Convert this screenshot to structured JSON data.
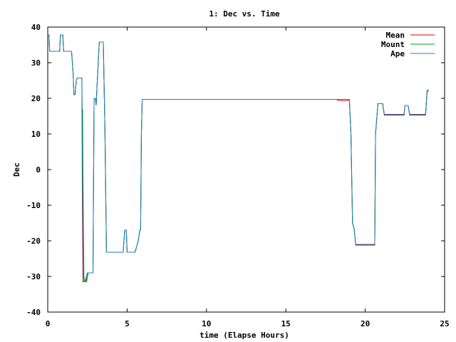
{
  "chart_data": {
    "type": "line",
    "title": "1: Dec vs. Time",
    "xlabel": "time (Elapse Hours)",
    "ylabel": "Dec",
    "xlim": [
      0,
      25
    ],
    "ylim": [
      -40,
      40
    ],
    "xticks": [
      0,
      5,
      10,
      15,
      20,
      25
    ],
    "yticks": [
      -40,
      -30,
      -20,
      -10,
      0,
      10,
      20,
      30,
      40
    ],
    "grid": false,
    "legend_position": "top-right",
    "series": [
      {
        "name": "Mean",
        "color": "#d40000",
        "points": [
          [
            0,
            37.8
          ],
          [
            0.08,
            37.8
          ],
          [
            0.12,
            33.2
          ],
          [
            0.75,
            33.2
          ],
          [
            0.8,
            37.8
          ],
          [
            0.95,
            37.8
          ],
          [
            1.0,
            33.2
          ],
          [
            1.5,
            33.2
          ],
          [
            1.6,
            27.0
          ],
          [
            1.65,
            21.0
          ],
          [
            1.72,
            21.0
          ],
          [
            1.8,
            25.0
          ],
          [
            1.85,
            25.7
          ],
          [
            2.15,
            25.7
          ],
          [
            2.18,
            -10.0
          ],
          [
            2.22,
            -31.5
          ],
          [
            2.35,
            -31.5
          ],
          [
            2.5,
            -29.0
          ],
          [
            2.85,
            -29.0
          ],
          [
            2.92,
            20.0
          ],
          [
            3.0,
            20.0
          ],
          [
            3.05,
            18.0
          ],
          [
            3.1,
            23.0
          ],
          [
            3.25,
            35.8
          ],
          [
            3.5,
            35.8
          ],
          [
            3.6,
            12.0
          ],
          [
            3.7,
            -23.2
          ],
          [
            4.75,
            -23.2
          ],
          [
            4.85,
            -17.0
          ],
          [
            4.95,
            -17.0
          ],
          [
            5.0,
            -23.2
          ],
          [
            5.5,
            -23.2
          ],
          [
            5.7,
            -20.0
          ],
          [
            5.8,
            -17.0
          ],
          [
            5.85,
            -17.0
          ],
          [
            5.9,
            10.0
          ],
          [
            5.95,
            19.7
          ],
          [
            18.2,
            19.7
          ],
          [
            18.3,
            19.4
          ],
          [
            19.0,
            19.4
          ],
          [
            19.1,
            10.0
          ],
          [
            19.2,
            -15.0
          ],
          [
            19.3,
            -16.5
          ],
          [
            19.4,
            -21.2
          ],
          [
            20.6,
            -21.2
          ],
          [
            20.65,
            10.0
          ],
          [
            20.8,
            18.5
          ],
          [
            21.1,
            18.5
          ],
          [
            21.2,
            15.3
          ],
          [
            22.45,
            15.3
          ],
          [
            22.5,
            18.0
          ],
          [
            22.7,
            18.0
          ],
          [
            22.8,
            15.3
          ],
          [
            23.8,
            15.3
          ],
          [
            23.9,
            22.0
          ],
          [
            24.0,
            22.0
          ]
        ]
      },
      {
        "name": "Mount",
        "color": "#00a000",
        "points": [
          [
            0,
            37.8
          ],
          [
            0.08,
            37.8
          ],
          [
            0.12,
            33.2
          ],
          [
            0.75,
            33.2
          ],
          [
            0.8,
            37.8
          ],
          [
            0.95,
            37.8
          ],
          [
            1.0,
            33.2
          ],
          [
            1.5,
            33.2
          ],
          [
            1.6,
            27.0
          ],
          [
            1.65,
            21.0
          ],
          [
            1.72,
            21.0
          ],
          [
            1.8,
            25.0
          ],
          [
            1.85,
            25.7
          ],
          [
            2.15,
            25.7
          ],
          [
            2.18,
            11.0
          ],
          [
            2.2,
            16.8
          ],
          [
            2.22,
            -1.0
          ],
          [
            2.28,
            -30.0
          ],
          [
            2.33,
            -31.5
          ],
          [
            2.45,
            -31.5
          ],
          [
            2.55,
            -29.0
          ],
          [
            2.85,
            -29.0
          ],
          [
            2.92,
            20.0
          ],
          [
            3.0,
            20.0
          ],
          [
            3.05,
            18.0
          ],
          [
            3.1,
            23.0
          ],
          [
            3.25,
            35.8
          ],
          [
            3.5,
            35.8
          ],
          [
            3.6,
            12.0
          ],
          [
            3.7,
            -23.2
          ],
          [
            4.75,
            -23.2
          ],
          [
            4.85,
            -17.0
          ],
          [
            4.95,
            -17.0
          ],
          [
            5.0,
            -23.2
          ],
          [
            5.5,
            -23.2
          ],
          [
            5.7,
            -20.0
          ],
          [
            5.8,
            -17.0
          ],
          [
            5.85,
            -17.0
          ],
          [
            5.9,
            10.0
          ],
          [
            5.95,
            19.7
          ],
          [
            18.2,
            19.7
          ],
          [
            18.3,
            19.7
          ],
          [
            19.0,
            19.7
          ],
          [
            19.1,
            10.0
          ],
          [
            19.2,
            -15.0
          ],
          [
            19.3,
            -16.5
          ],
          [
            19.4,
            -21.0
          ],
          [
            20.6,
            -21.0
          ],
          [
            20.65,
            10.0
          ],
          [
            20.8,
            18.5
          ],
          [
            21.1,
            18.5
          ],
          [
            21.2,
            15.5
          ],
          [
            22.45,
            15.5
          ],
          [
            22.5,
            18.0
          ],
          [
            22.7,
            18.0
          ],
          [
            22.8,
            15.5
          ],
          [
            23.8,
            15.5
          ],
          [
            23.9,
            22.3
          ],
          [
            24.0,
            22.3
          ]
        ]
      },
      {
        "name": "Ape",
        "color": "#1f7fbf",
        "points": [
          [
            0,
            37.8
          ],
          [
            0.08,
            37.8
          ],
          [
            0.12,
            33.2
          ],
          [
            0.75,
            33.2
          ],
          [
            0.8,
            37.8
          ],
          [
            0.95,
            37.8
          ],
          [
            1.0,
            33.2
          ],
          [
            1.5,
            33.2
          ],
          [
            1.6,
            27.0
          ],
          [
            1.65,
            21.0
          ],
          [
            1.72,
            21.0
          ],
          [
            1.8,
            25.0
          ],
          [
            1.85,
            25.7
          ],
          [
            2.15,
            25.7
          ],
          [
            2.2,
            -10.0
          ],
          [
            2.25,
            -31.5
          ],
          [
            2.4,
            -31.5
          ],
          [
            2.5,
            -29.0
          ],
          [
            2.85,
            -29.0
          ],
          [
            2.92,
            20.0
          ],
          [
            3.0,
            20.0
          ],
          [
            3.05,
            18.0
          ],
          [
            3.1,
            23.0
          ],
          [
            3.25,
            35.8
          ],
          [
            3.5,
            35.8
          ],
          [
            3.6,
            12.0
          ],
          [
            3.7,
            -23.2
          ],
          [
            4.75,
            -23.2
          ],
          [
            4.85,
            -17.0
          ],
          [
            4.95,
            -17.0
          ],
          [
            5.0,
            -23.2
          ],
          [
            5.5,
            -23.2
          ],
          [
            5.7,
            -20.0
          ],
          [
            5.8,
            -17.0
          ],
          [
            5.85,
            -17.0
          ],
          [
            5.9,
            10.0
          ],
          [
            5.95,
            19.7
          ],
          [
            18.2,
            19.7
          ],
          [
            18.3,
            19.7
          ],
          [
            19.0,
            19.7
          ],
          [
            19.1,
            10.0
          ],
          [
            19.2,
            -15.0
          ],
          [
            19.3,
            -16.5
          ],
          [
            19.4,
            -21.0
          ],
          [
            20.6,
            -21.0
          ],
          [
            20.65,
            10.0
          ],
          [
            20.8,
            18.5
          ],
          [
            21.1,
            18.5
          ],
          [
            21.2,
            15.5
          ],
          [
            22.45,
            15.5
          ],
          [
            22.5,
            18.0
          ],
          [
            22.7,
            18.0
          ],
          [
            22.8,
            15.5
          ],
          [
            23.8,
            15.5
          ],
          [
            23.9,
            22.3
          ],
          [
            24.0,
            22.3
          ]
        ]
      }
    ]
  }
}
